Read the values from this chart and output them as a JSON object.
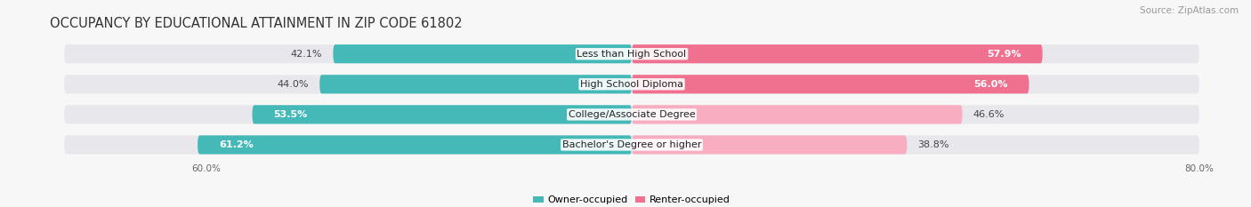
{
  "title": "OCCUPANCY BY EDUCATIONAL ATTAINMENT IN ZIP CODE 61802",
  "source": "Source: ZipAtlas.com",
  "categories": [
    "Less than High School",
    "High School Diploma",
    "College/Associate Degree",
    "Bachelor's Degree or higher"
  ],
  "owner_values": [
    42.1,
    44.0,
    53.5,
    61.2
  ],
  "renter_values": [
    57.9,
    56.0,
    46.6,
    38.8
  ],
  "owner_color": "#45b8b8",
  "renter_color": "#f07090",
  "renter_color_light": "#f8aec0",
  "bg_bar_color": "#e8e8ec",
  "fig_bg": "#f7f7f7",
  "xlim_max": 80.0,
  "axis_left_label": "60.0%",
  "axis_right_label": "80.0%",
  "legend_owner": "Owner-occupied",
  "legend_renter": "Renter-occupied",
  "title_fontsize": 10.5,
  "source_fontsize": 7.5,
  "label_fontsize": 8,
  "cat_fontsize": 8,
  "bar_height": 0.62,
  "bar_gap": 0.18
}
